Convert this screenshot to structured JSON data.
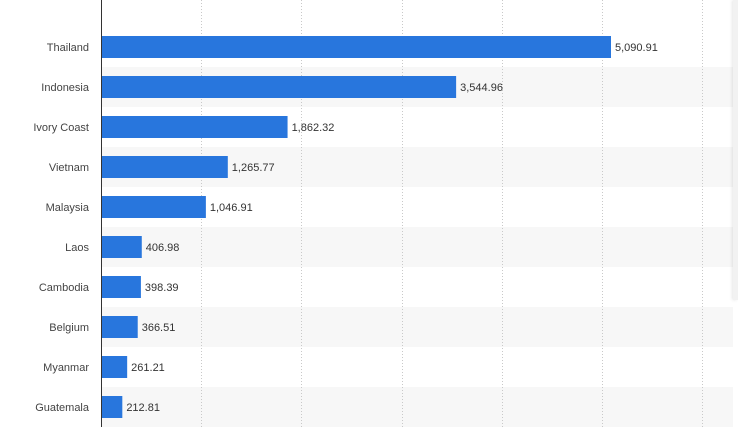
{
  "chart_data": {
    "type": "bar",
    "orientation": "horizontal",
    "title": "",
    "xlabel": "",
    "ylabel": "",
    "categories": [
      "Thailand",
      "Indonesia",
      "Ivory Coast",
      "Vietnam",
      "Malaysia",
      "Laos",
      "Cambodia",
      "Belgium",
      "Myanmar",
      "Guatemala"
    ],
    "values": [
      5090.91,
      3544.96,
      1862.32,
      1265.77,
      1046.91,
      406.98,
      398.39,
      366.51,
      261.21,
      212.81
    ],
    "value_labels": [
      "5,090.91",
      "3,544.96",
      "1,862.32",
      "1,265.77",
      "1,046.91",
      "406.98",
      "398.39",
      "366.51",
      "261.21",
      "212.81"
    ],
    "xlim": [
      0,
      6000
    ],
    "grid": true,
    "legend": "none",
    "bar_color": "#2876dd",
    "stripe_color": "#f7f7f7"
  }
}
